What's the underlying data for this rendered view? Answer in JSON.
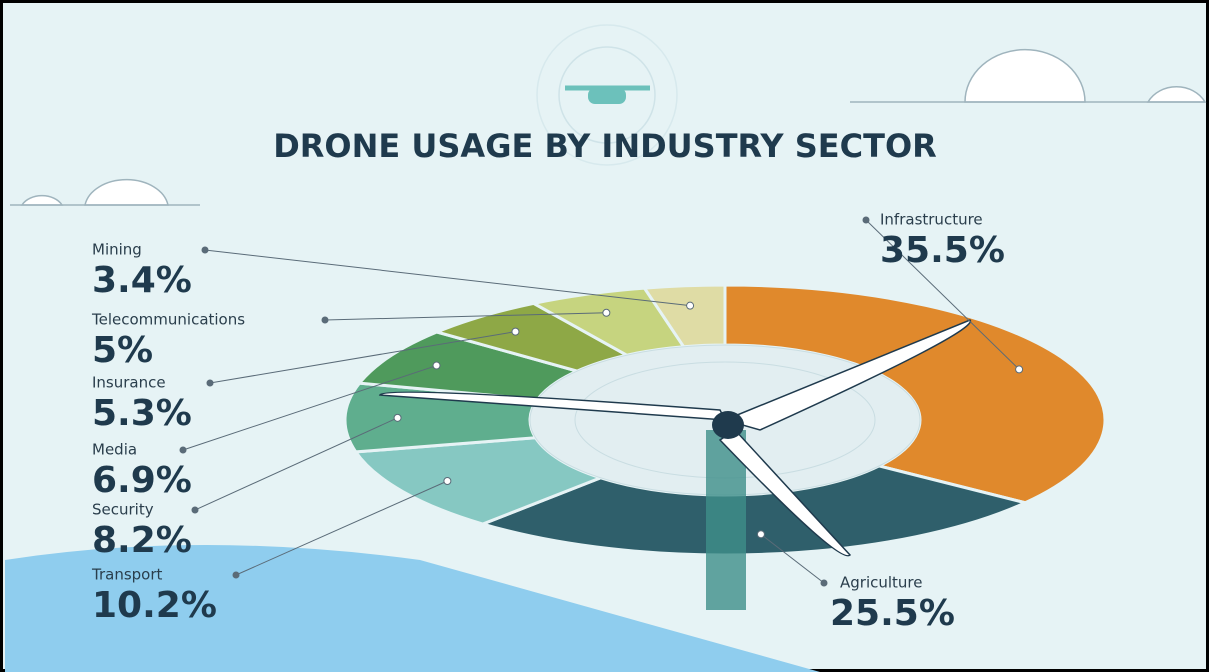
{
  "chart_data": {
    "type": "pie",
    "title": "DRONE USAGE BY INDUSTRY SECTOR",
    "categories": [
      "Infrastructure",
      "Agriculture",
      "Transport",
      "Security",
      "Media",
      "Insurance",
      "Telecommunications",
      "Mining"
    ],
    "values": [
      35.5,
      25.5,
      10.2,
      8.2,
      6.9,
      5.3,
      5,
      3.4
    ],
    "value_labels": [
      "35.5%",
      "25.5%",
      "10.2%",
      "8.2%",
      "6.9%",
      "5.3%",
      "5%",
      "3.4%"
    ],
    "colors": [
      "#e0892c",
      "#2f5f6b",
      "#86c8c2",
      "#5fae8e",
      "#4f9a5c",
      "#8ea846",
      "#c6d47f",
      "#dfdca5"
    ]
  }
}
